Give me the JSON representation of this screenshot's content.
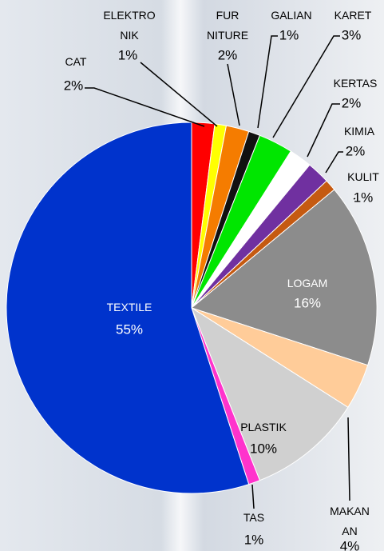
{
  "chart_data": {
    "type": "pie",
    "categories": [
      "CAT",
      "ELEKTRO\nNIK",
      "FUR\nNITURE",
      "GALIAN",
      "KARET",
      "KERTAS",
      "KIMIA",
      "KULIT",
      "LOGAM",
      "MAKAN\nAN",
      "PLASTIK",
      "TAS",
      "TEXTILE"
    ],
    "values": [
      2,
      1,
      2,
      1,
      3,
      2,
      2,
      1,
      16,
      4,
      10,
      1,
      55
    ],
    "value_labels": [
      "2%",
      "1%",
      "2%",
      "1%",
      "3%",
      "2%",
      "2%",
      "1%",
      "16%",
      "4%",
      "10%",
      "1%",
      "55%"
    ],
    "colors": [
      "#ff0000",
      "#ffff00",
      "#f57c00",
      "#111111",
      "#00e600",
      "#ffffff",
      "#7030a0",
      "#c55a11",
      "#8c8c8c",
      "#ffcc99",
      "#d0d0d0",
      "#ff33cc",
      "#0033cc"
    ]
  }
}
